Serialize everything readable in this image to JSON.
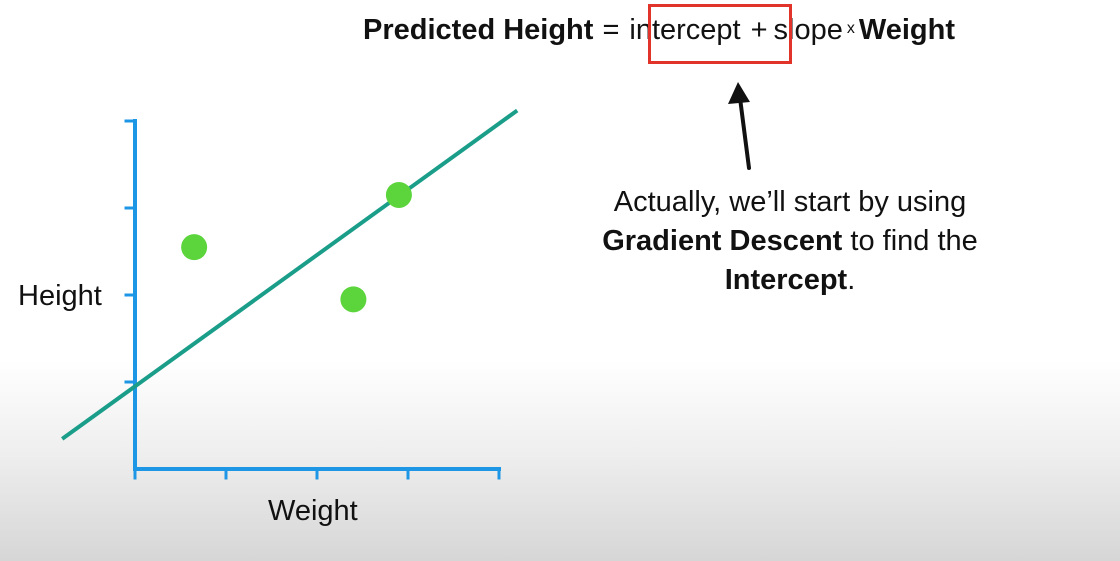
{
  "equation": {
    "predicted_height": "Predicted Height",
    "equals": "=",
    "intercept": "intercept",
    "plus": "+",
    "slope": "slope",
    "times": "x",
    "weight": "Weight"
  },
  "callout": {
    "line1": "Actually, we’ll start by using",
    "line2_bold": "Gradient Descent",
    "line2_rest": " to find the",
    "line3_bold": "Intercept",
    "line3_end": "."
  },
  "axes": {
    "x_label": "Weight",
    "y_label": "Height"
  },
  "colors": {
    "axis": "#1e96e6",
    "fit_line": "#1a9e8a",
    "points": "#5cd43c",
    "highlight": "#e2332b",
    "arrow": "#111111"
  },
  "points": [
    {
      "x": 0.65,
      "y": 2.55
    },
    {
      "x": 2.4,
      "y": 1.95
    },
    {
      "x": 2.9,
      "y": 3.15
    }
  ],
  "fit_line": {
    "x_start": -0.8,
    "x_end": 4.2,
    "intercept": 0.95,
    "slope": 0.755
  },
  "axis_range": {
    "x": [
      0,
      4
    ],
    "y": [
      0,
      4
    ]
  }
}
